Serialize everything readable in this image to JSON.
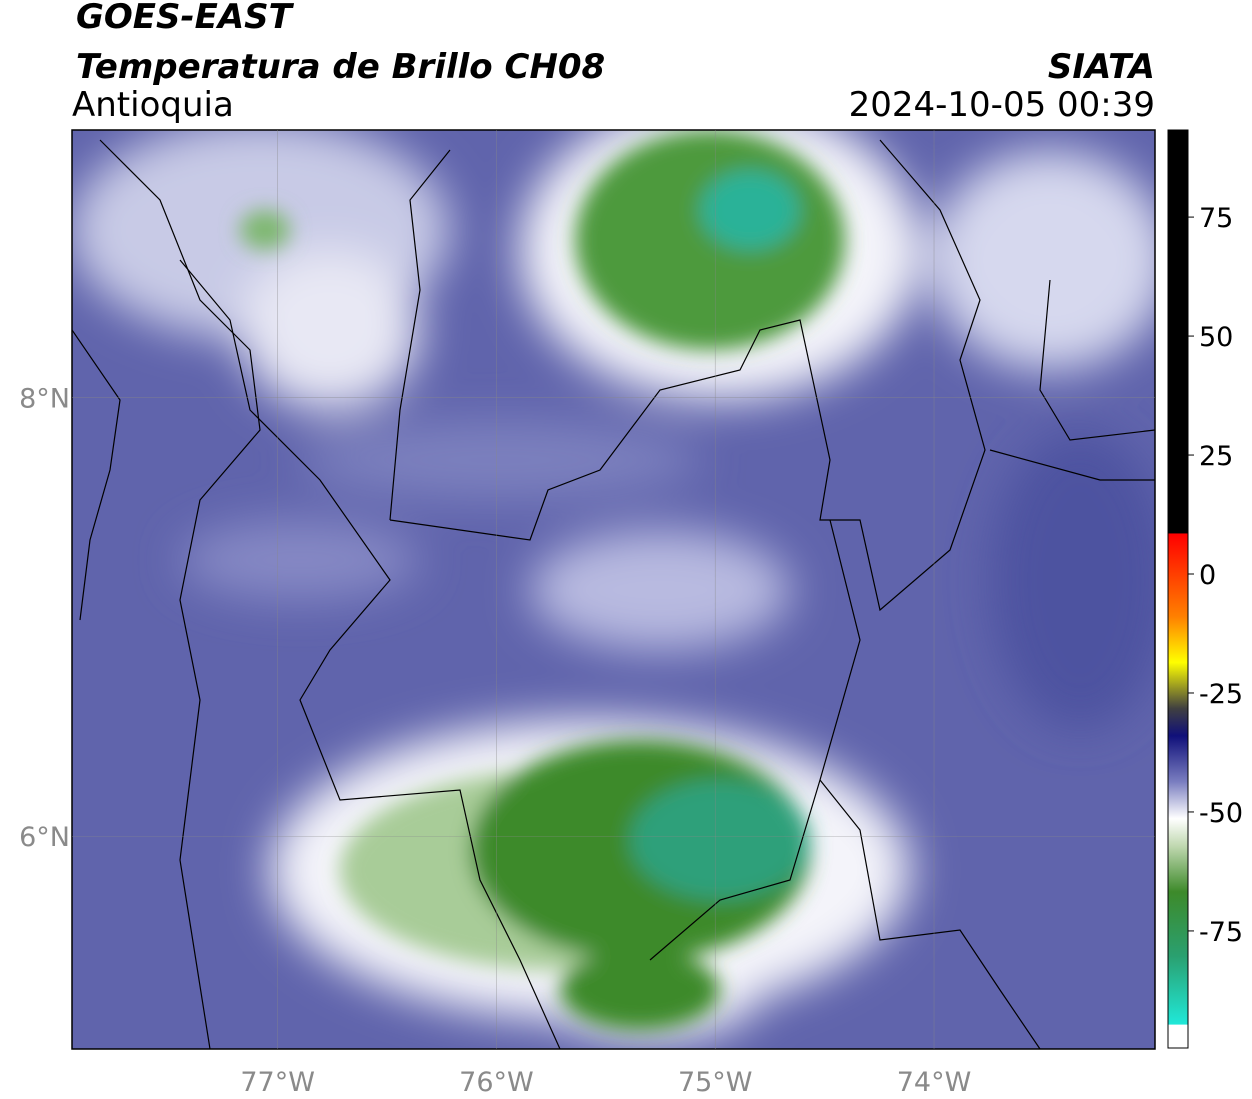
{
  "header": {
    "satellite": "GOES-EAST",
    "product": "Temperatura de Brillo CH08",
    "region": "Antioquia",
    "source": "SIATA",
    "datetime": "2024-10-05 00:39"
  },
  "map": {
    "lon_range": [
      -77.94,
      -72.99
    ],
    "lat_range": [
      5.03,
      9.22
    ],
    "lon_ticks": [
      {
        "value": -77,
        "label": "77°W"
      },
      {
        "value": -76,
        "label": "76°W"
      },
      {
        "value": -75,
        "label": "75°W"
      },
      {
        "value": -74,
        "label": "74°W"
      }
    ],
    "lat_ticks": [
      {
        "value": 8,
        "label": "8°N"
      },
      {
        "value": 6,
        "label": "6°N"
      }
    ]
  },
  "colorbar": {
    "range": [
      -99.6,
      93.3
    ],
    "ticks": [
      75,
      50,
      25,
      0,
      -25,
      -50,
      -75
    ]
  }
}
